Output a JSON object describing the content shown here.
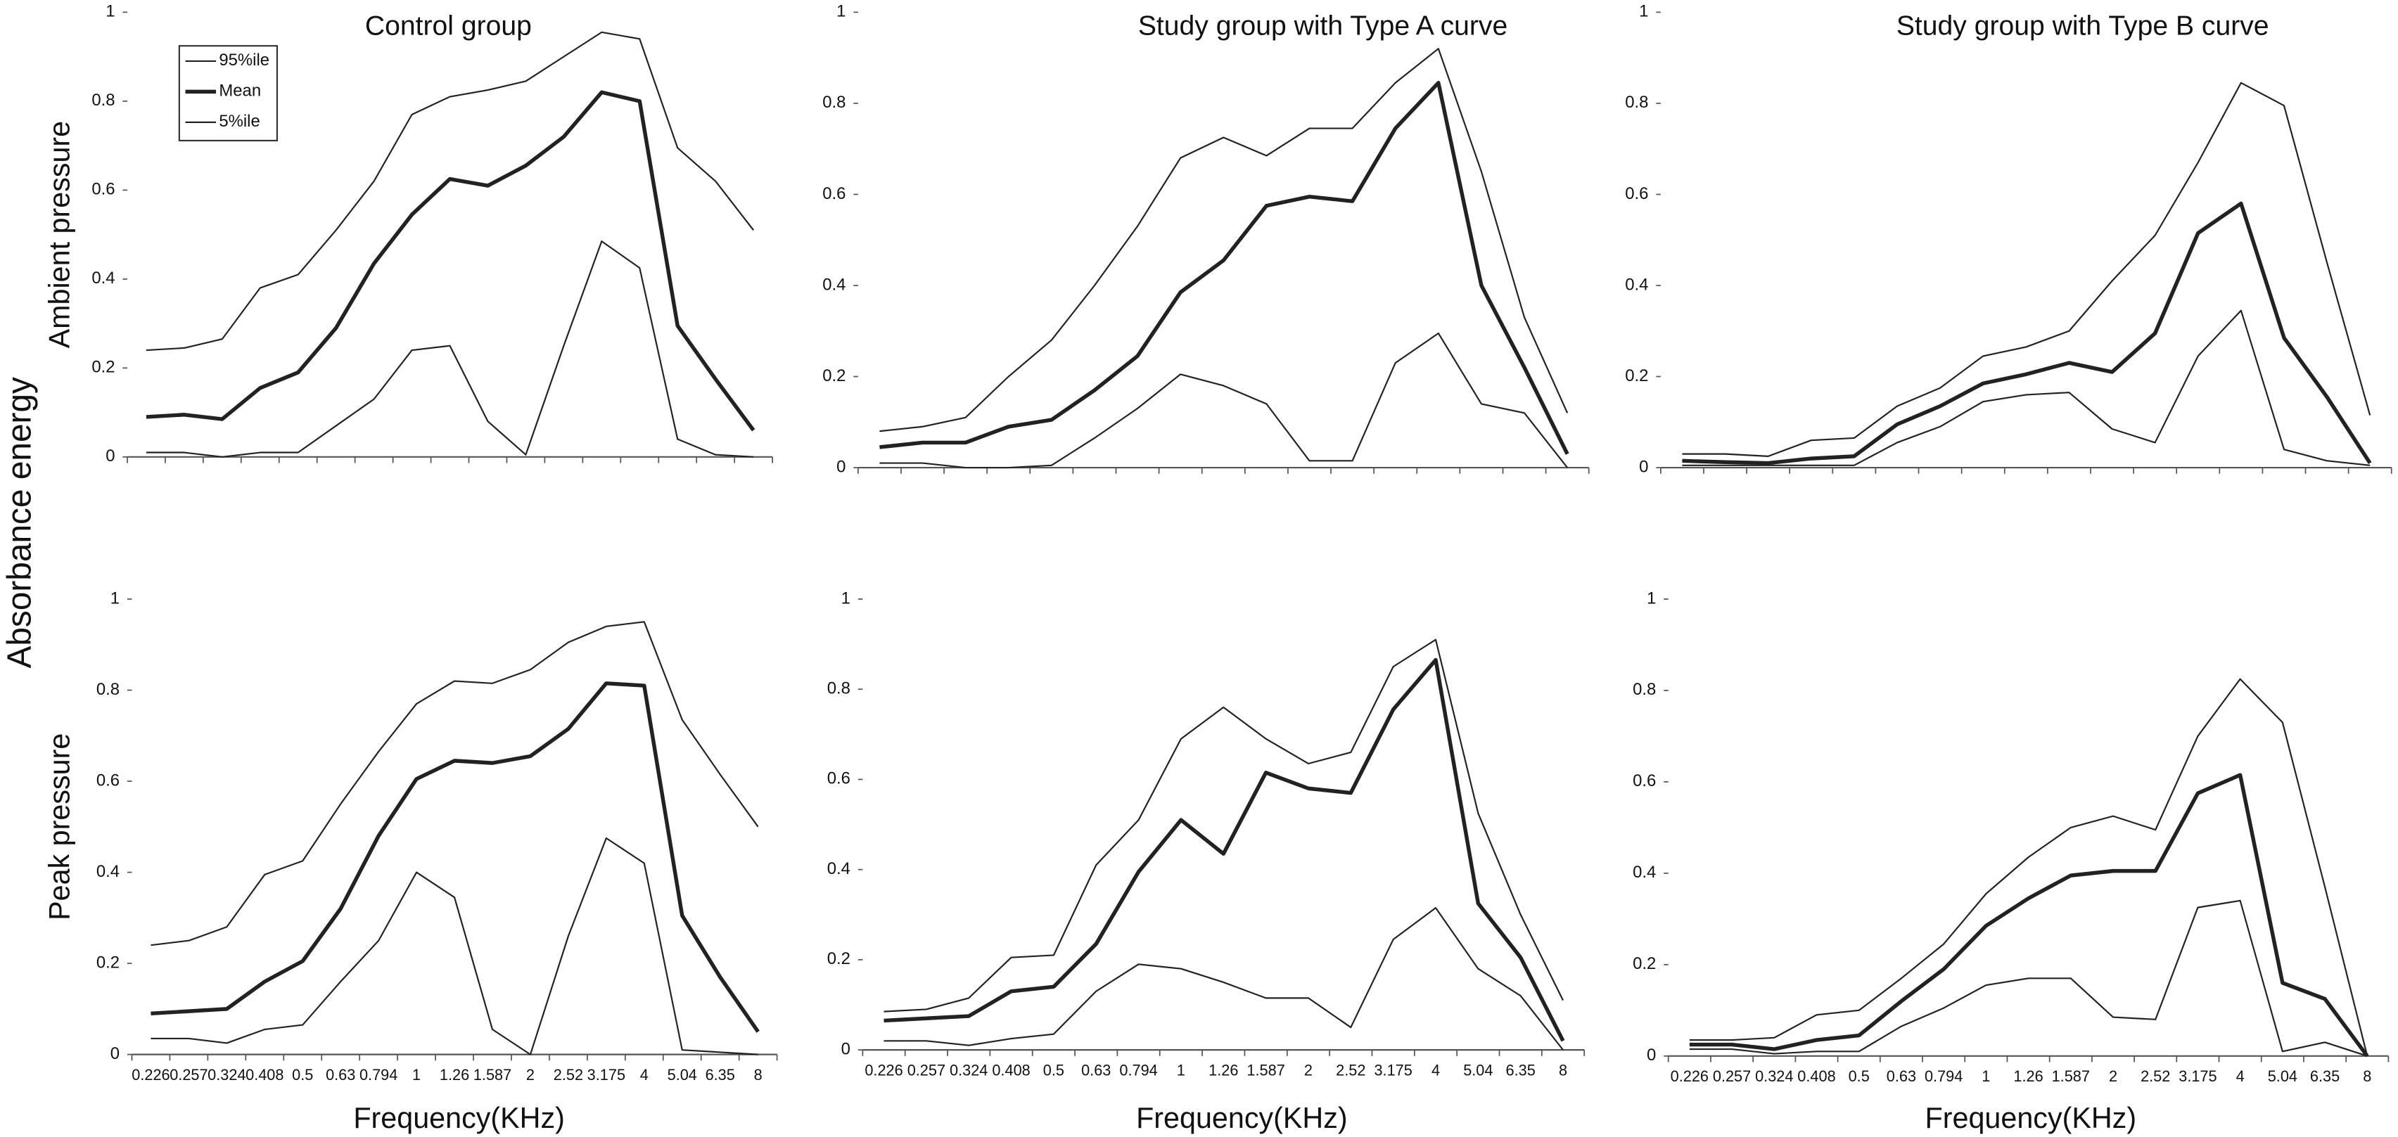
{
  "y_label": "Absorbance energy",
  "chart_data": [
    {
      "type": "line",
      "title": "Control group",
      "ylabel": "Ambient pressure",
      "categories": [
        null,
        null,
        null,
        null,
        null,
        null,
        null,
        null,
        null,
        null,
        null,
        null,
        null,
        null,
        null,
        null,
        null
      ],
      "ylim": [
        0,
        1
      ],
      "yticks": [
        0,
        0.2,
        0.4,
        0.6,
        0.8,
        1
      ],
      "legend": "upper left",
      "series": [
        {
          "name": "95%ile",
          "color": "#222222",
          "line_width": 1,
          "values": [
            0.24,
            0.245,
            0.265,
            0.38,
            0.41,
            0.51,
            0.62,
            0.77,
            0.81,
            0.825,
            0.845,
            0.9,
            0.955,
            0.94,
            0.695,
            0.62,
            0.51
          ]
        },
        {
          "name": "Mean",
          "color": "#222222",
          "line_width": 2.5,
          "values": [
            0.09,
            0.095,
            0.085,
            0.155,
            0.19,
            0.29,
            0.435,
            0.545,
            0.625,
            0.61,
            0.655,
            0.72,
            0.82,
            0.8,
            0.295,
            0.175,
            0.06
          ]
        },
        {
          "name": "5%ile",
          "color": "#222222",
          "line_width": 1,
          "values": [
            0.01,
            0.01,
            0,
            0.01,
            0.01,
            0.07,
            0.13,
            0.24,
            0.25,
            0.08,
            0.005,
            0.25,
            0.485,
            0.425,
            0.04,
            0.005,
            0
          ]
        }
      ]
    },
    {
      "type": "line",
      "title": "Study group with Type A curve",
      "categories": [
        null,
        null,
        null,
        null,
        null,
        null,
        null,
        null,
        null,
        null,
        null,
        null,
        null,
        null,
        null,
        null,
        null
      ],
      "ylim": [
        0,
        1
      ],
      "yticks": [
        0,
        0.2,
        0.4,
        0.6,
        0.8,
        1
      ],
      "series": [
        {
          "color": "#222222",
          "line_width": 1,
          "values": [
            0.08,
            0.09,
            0.11,
            0.2,
            0.28,
            0.4,
            0.53,
            0.68,
            0.725,
            0.685,
            0.745,
            0.745,
            0.845,
            0.92,
            0.65,
            0.33,
            0.12
          ]
        },
        {
          "color": "#222222",
          "line_width": 2.5,
          "values": [
            0.045,
            0.055,
            0.055,
            0.09,
            0.105,
            0.17,
            0.245,
            0.385,
            0.455,
            0.575,
            0.595,
            0.585,
            0.745,
            0.845,
            0.4,
            0.22,
            0.03
          ]
        },
        {
          "color": "#222222",
          "line_width": 1,
          "values": [
            0.01,
            0.01,
            0,
            0,
            0.005,
            0.065,
            0.13,
            0.205,
            0.18,
            0.14,
            0.015,
            0.015,
            0.23,
            0.295,
            0.14,
            0.12,
            0
          ]
        }
      ]
    },
    {
      "type": "line",
      "title": "Study group with Type B curve",
      "categories": [
        null,
        null,
        null,
        null,
        null,
        null,
        null,
        null,
        null,
        null,
        null,
        null,
        null,
        null,
        null,
        null,
        null
      ],
      "ylim": [
        0,
        1
      ],
      "yticks": [
        0,
        0.2,
        0.4,
        0.6,
        0.8,
        1
      ],
      "series": [
        {
          "color": "#222222",
          "line_width": 1,
          "values": [
            0.03,
            0.03,
            0.025,
            0.06,
            0.065,
            0.135,
            0.175,
            0.245,
            0.265,
            0.3,
            0.41,
            0.51,
            0.67,
            0.845,
            0.795,
            0.45,
            0.115
          ]
        },
        {
          "color": "#222222",
          "line_width": 2.5,
          "values": [
            0.015,
            0.012,
            0.01,
            0.02,
            0.025,
            0.095,
            0.135,
            0.185,
            0.205,
            0.23,
            0.21,
            0.295,
            0.515,
            0.58,
            0.285,
            0.155,
            0.01
          ]
        },
        {
          "color": "#222222",
          "line_width": 1,
          "values": [
            0.005,
            0.005,
            0.005,
            0.005,
            0.005,
            0.055,
            0.09,
            0.145,
            0.16,
            0.165,
            0.085,
            0.055,
            0.245,
            0.345,
            0.04,
            0.015,
            0.005
          ]
        }
      ]
    },
    {
      "type": "line",
      "ylabel": "Peak pressure",
      "xlabel": "Frequency(KHz)",
      "categories": [
        "0.226",
        "0.257",
        "0.324",
        "0.408",
        "0.5",
        "0.63",
        "0.794",
        "1",
        "1.26",
        "1.587",
        "2",
        "2.52",
        "3.175",
        "4",
        "5.04",
        "6.35",
        "8"
      ],
      "ylim": [
        0,
        1
      ],
      "yticks": [
        0,
        0.2,
        0.4,
        0.6,
        0.8,
        1
      ],
      "series": [
        {
          "color": "#222222",
          "line_width": 1,
          "values": [
            0.24,
            0.25,
            0.28,
            0.395,
            0.425,
            0.55,
            0.665,
            0.77,
            0.82,
            0.815,
            0.845,
            0.905,
            0.94,
            0.95,
            0.735,
            0.615,
            0.5
          ]
        },
        {
          "color": "#222222",
          "line_width": 2.5,
          "values": [
            0.09,
            0.095,
            0.1,
            0.16,
            0.205,
            0.32,
            0.48,
            0.605,
            0.645,
            0.64,
            0.655,
            0.715,
            0.815,
            0.81,
            0.305,
            0.17,
            0.05
          ]
        },
        {
          "color": "#222222",
          "line_width": 1,
          "values": [
            0.035,
            0.035,
            0.025,
            0.055,
            0.065,
            0.16,
            0.25,
            0.4,
            0.345,
            0.055,
            0,
            0.26,
            0.475,
            0.42,
            0.01,
            0.005,
            0
          ]
        }
      ]
    },
    {
      "type": "line",
      "xlabel": "Frequency(KHz)",
      "categories": [
        "0.226",
        "0.257",
        "0.324",
        "0.408",
        "0.5",
        "0.63",
        "0.794",
        "1",
        "1.26",
        "1.587",
        "2",
        "2.52",
        "3.175",
        "4",
        "5.04",
        "6.35",
        "8"
      ],
      "ylim": [
        0,
        1
      ],
      "yticks": [
        0,
        0.2,
        0.4,
        0.6,
        0.8,
        1
      ],
      "series": [
        {
          "color": "#222222",
          "line_width": 1,
          "values": [
            0.085,
            0.09,
            0.115,
            0.205,
            0.21,
            0.41,
            0.51,
            0.69,
            0.76,
            0.69,
            0.635,
            0.66,
            0.85,
            0.91,
            0.525,
            0.3,
            0.11
          ]
        },
        {
          "color": "#222222",
          "line_width": 2.5,
          "values": [
            0.065,
            0.07,
            0.075,
            0.13,
            0.14,
            0.235,
            0.395,
            0.51,
            0.435,
            0.615,
            0.58,
            0.57,
            0.755,
            0.865,
            0.325,
            0.205,
            0.02
          ]
        },
        {
          "color": "#222222",
          "line_width": 1,
          "values": [
            0.02,
            0.02,
            0.01,
            0.025,
            0.035,
            0.13,
            0.19,
            0.18,
            0.15,
            0.115,
            0.115,
            0.05,
            0.245,
            0.315,
            0.18,
            0.12,
            0
          ]
        }
      ]
    },
    {
      "type": "line",
      "xlabel": "Frequency(KHz)",
      "categories": [
        "0.226",
        "0.257",
        "0.324",
        "0.408",
        "0.5",
        "0.63",
        "0.794",
        "1",
        "1.26",
        "1.587",
        "2",
        "2.52",
        "3.175",
        "4",
        "5.04",
        "6.35",
        "8"
      ],
      "ylim": [
        0,
        1
      ],
      "yticks": [
        0,
        0.2,
        0.4,
        0.6,
        0.8,
        1
      ],
      "series": [
        {
          "color": "#222222",
          "line_width": 1,
          "values": [
            0.035,
            0.035,
            0.04,
            0.09,
            0.1,
            0.17,
            0.245,
            0.355,
            0.435,
            0.5,
            0.525,
            0.495,
            0.7,
            0.825,
            0.73,
            0.37,
            0
          ]
        },
        {
          "color": "#222222",
          "line_width": 2.5,
          "values": [
            0.025,
            0.025,
            0.015,
            0.035,
            0.045,
            0.12,
            0.19,
            0.285,
            0.345,
            0.395,
            0.405,
            0.405,
            0.575,
            0.615,
            0.16,
            0.125,
            0
          ]
        },
        {
          "color": "#222222",
          "line_width": 1,
          "values": [
            0.015,
            0.015,
            0.005,
            0.01,
            0.01,
            0.065,
            0.105,
            0.155,
            0.17,
            0.17,
            0.085,
            0.08,
            0.325,
            0.34,
            0.01,
            0.03,
            0
          ]
        }
      ]
    }
  ]
}
